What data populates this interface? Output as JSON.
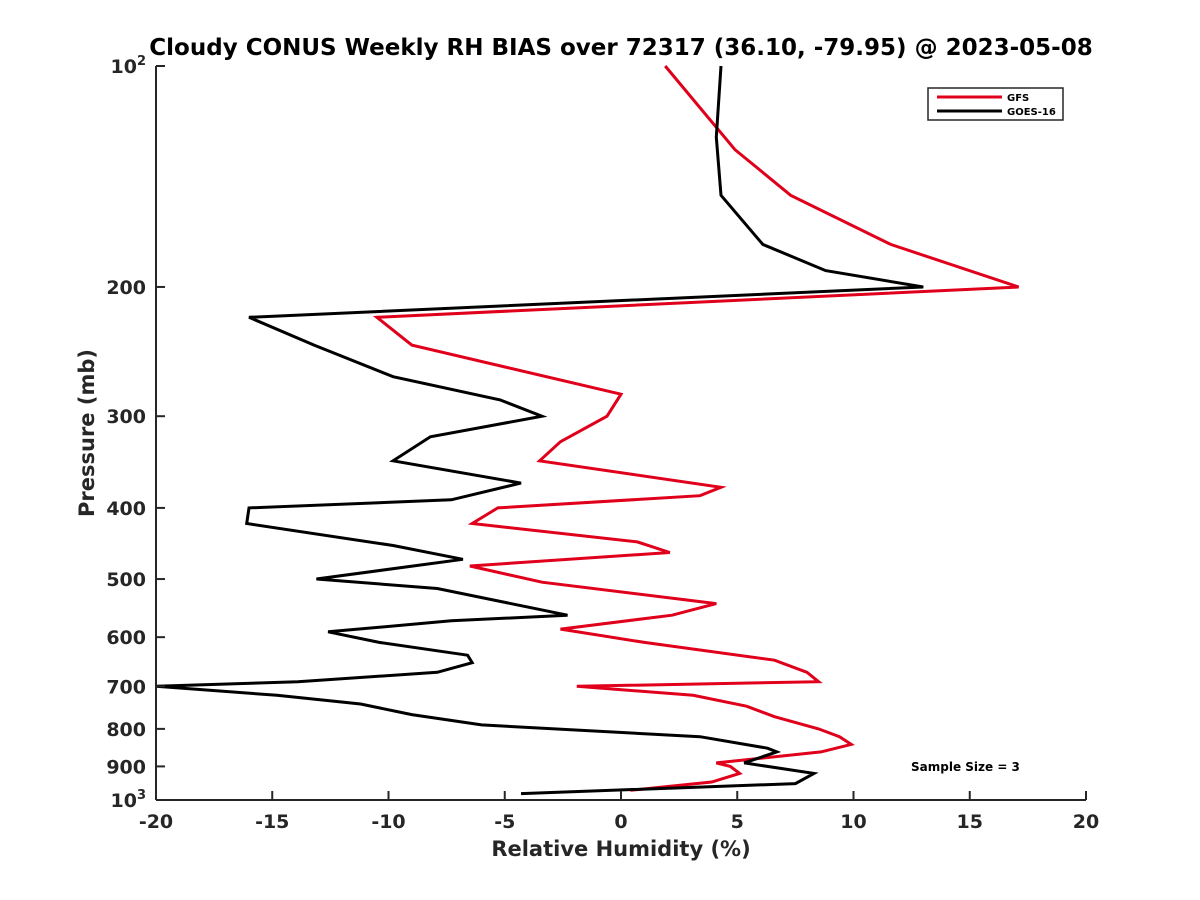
{
  "chart_data": {
    "type": "line",
    "title": "Cloudy CONUS Weekly RH BIAS over 72317 (36.10, -79.95) @ 2023-05-08",
    "xlabel": "Relative Humidity (%)",
    "ylabel": "Pressure (mb)",
    "xlim": [
      -20,
      20
    ],
    "ylim": [
      100,
      1000
    ],
    "y_scale": "log",
    "y_reversed": true,
    "x_ticks": [
      "-20",
      "-15",
      "-10",
      "-5",
      "0",
      "5",
      "10",
      "15",
      "20"
    ],
    "y_ticks": [
      {
        "value": 100,
        "label": "10",
        "sup": "2"
      },
      {
        "value": 200,
        "label": "200",
        "sup": ""
      },
      {
        "value": 300,
        "label": "300",
        "sup": ""
      },
      {
        "value": 400,
        "label": "400",
        "sup": ""
      },
      {
        "value": 500,
        "label": "500",
        "sup": ""
      },
      {
        "value": 600,
        "label": "600",
        "sup": ""
      },
      {
        "value": 700,
        "label": "700",
        "sup": ""
      },
      {
        "value": 800,
        "label": "800",
        "sup": ""
      },
      {
        "value": 900,
        "label": "900",
        "sup": ""
      },
      {
        "value": 1000,
        "label": "10",
        "sup": "3"
      }
    ],
    "grid": false,
    "legend_position": "top-right",
    "series": [
      {
        "name": "GFS",
        "color": "#e0001b",
        "x": [
          1.9,
          4.9,
          7.3,
          11.6,
          17.1,
          -10.5,
          -9.0,
          0.0,
          -0.6,
          -2.6,
          -3.5,
          4.3,
          3.4,
          -5.3,
          -6.4,
          0.7,
          2.1,
          -6.5,
          -3.4,
          4.1,
          2.2,
          -2.6,
          1.0,
          6.6,
          8.0,
          8.5,
          -1.9,
          3.1,
          5.4,
          6.6,
          8.5,
          9.4,
          9.9,
          8.6,
          4.1,
          4.7,
          5.1,
          3.9,
          0.4
        ],
        "y": [
          100,
          130,
          150,
          175,
          200,
          220,
          240,
          280,
          300,
          325,
          345,
          375,
          385,
          400,
          420,
          445,
          460,
          480,
          505,
          540,
          560,
          585,
          610,
          645,
          670,
          690,
          700,
          720,
          745,
          770,
          800,
          820,
          840,
          860,
          890,
          900,
          920,
          945,
          970
        ]
      },
      {
        "name": "GOES-16",
        "color": "#000000",
        "x": [
          4.3,
          4.1,
          4.3,
          6.1,
          8.8,
          13.0,
          -16.0,
          -13.2,
          -9.8,
          -5.2,
          -3.4,
          -8.2,
          -9.8,
          -4.3,
          -7.3,
          -16.0,
          -16.1,
          -9.8,
          -6.8,
          -13.1,
          -7.9,
          -2.3,
          -7.3,
          -12.6,
          -10.4,
          -6.6,
          -6.4,
          -7.9,
          -13.9,
          -20.0,
          -14.8,
          -11.2,
          -9.0,
          -6.0,
          3.4,
          6.3,
          6.7,
          5.3,
          8.3,
          7.5,
          -4.3
        ],
        "y": [
          100,
          125,
          150,
          175,
          190,
          200,
          220,
          240,
          265,
          285,
          300,
          320,
          345,
          370,
          390,
          400,
          420,
          450,
          470,
          500,
          515,
          560,
          570,
          590,
          610,
          635,
          650,
          670,
          690,
          700,
          720,
          740,
          765,
          790,
          820,
          850,
          860,
          890,
          920,
          950,
          980
        ]
      }
    ],
    "annotation": "Sample Size = 3"
  }
}
